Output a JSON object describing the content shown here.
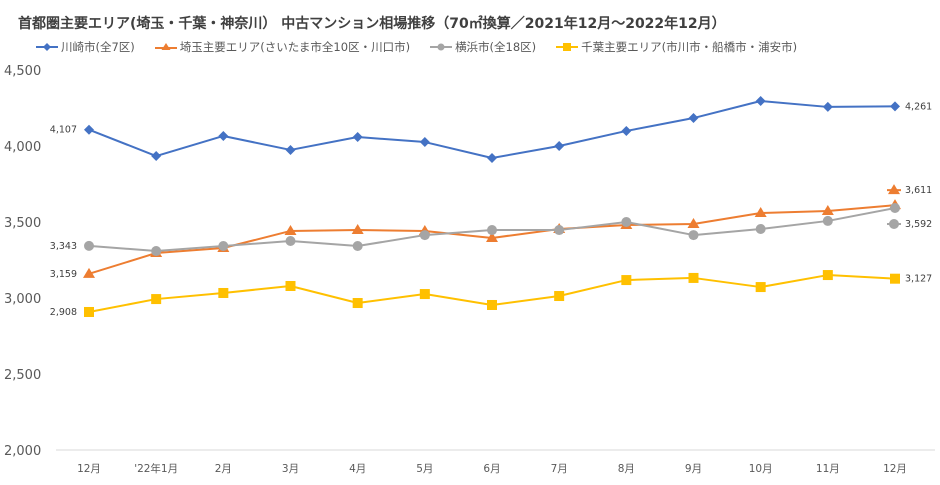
{
  "chart_data": {
    "type": "line",
    "title": "首都圏主要エリア(埼玉・千葉・神奈川） 中古マンション相場推移（70㎡換算／2021年12月～2022年12月）",
    "xlabel": "",
    "ylabel": "",
    "ylim": [
      2000,
      4500
    ],
    "yticks": [
      "4,500",
      "4,000",
      "3,500",
      "3,000",
      "2,500",
      "2,000"
    ],
    "ytick_values": [
      4500,
      4000,
      3500,
      3000,
      2500,
      2000
    ],
    "categories": [
      "12月",
      "'22年1月",
      "2月",
      "3月",
      "4月",
      "5月",
      "6月",
      "7月",
      "8月",
      "9月",
      "10月",
      "11月",
      "12月"
    ],
    "grid": "bottom-axis-only",
    "legend_position": "top",
    "series": [
      {
        "name": "川崎市(全7区)",
        "color": "#4472C4",
        "marker": "diamond",
        "values": [
          4107,
          3934,
          4066,
          3974,
          4059,
          4026,
          3921,
          4000,
          4099,
          4184,
          4296,
          4257,
          4261
        ],
        "labels": {
          "first": "4,107",
          "last": "4,261"
        }
      },
      {
        "name": "埼玉主要エリア(さいたま市全10区・川口市)",
        "color": "#ED7D31",
        "marker": "triangle",
        "values": [
          3159,
          3296,
          3329,
          3441,
          3447,
          3441,
          3395,
          3454,
          3480,
          3487,
          3559,
          3572,
          3611
        ],
        "labels": {
          "first": "3,159",
          "last": "3,611"
        }
      },
      {
        "name": "横浜市(全18区)",
        "color": "#A5A5A5",
        "marker": "circle",
        "values": [
          3343,
          3309,
          3342,
          3375,
          3342,
          3414,
          3447,
          3447,
          3500,
          3414,
          3454,
          3507,
          3592
        ],
        "labels": {
          "first": "3,343",
          "last": "3,592"
        }
      },
      {
        "name": "千葉主要エリア(市川市・船橋市・浦安市)",
        "color": "#FFC000",
        "marker": "square",
        "values": [
          2908,
          2993,
          3033,
          3079,
          2967,
          3026,
          2954,
          3013,
          3118,
          3132,
          3072,
          3151,
          3127
        ],
        "labels": {
          "first": "2,908",
          "last": "3,127"
        }
      }
    ]
  }
}
